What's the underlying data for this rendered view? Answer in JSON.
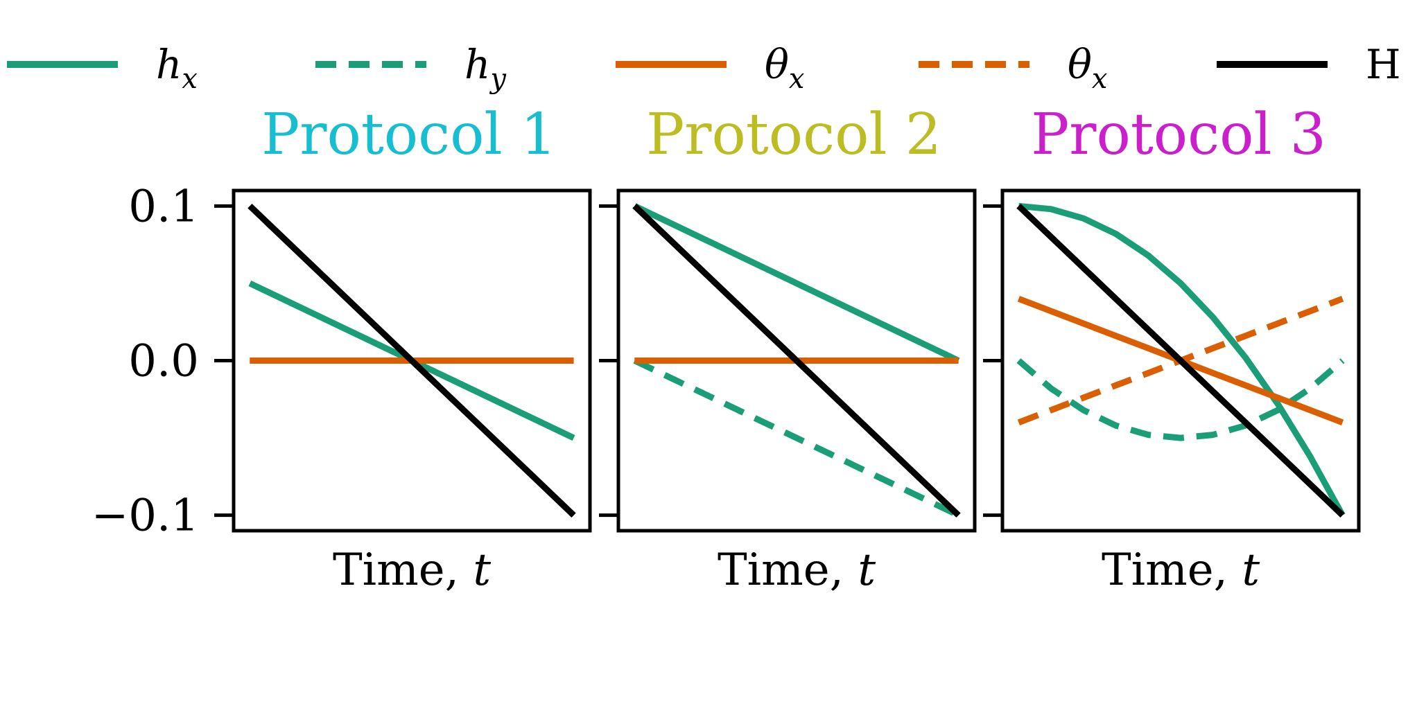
{
  "legend": {
    "placement": "top",
    "items": [
      {
        "label": "h",
        "sub": "x",
        "italic": true,
        "color": "#1b9e77",
        "dash": "solid"
      },
      {
        "label": "h",
        "sub": "y",
        "italic": true,
        "color": "#1b9e77",
        "dash": "dashed"
      },
      {
        "label": "θ",
        "sub": "x",
        "italic": true,
        "color": "#d95f02",
        "dash": "solid"
      },
      {
        "label": "θ",
        "sub": "x",
        "italic": true,
        "color": "#d95f02",
        "dash": "dashed"
      },
      {
        "label": "H",
        "sub": "",
        "italic": false,
        "color": "#000000",
        "dash": "solid"
      }
    ]
  },
  "chart_data": [
    {
      "type": "line",
      "title": "Protocol 1",
      "title_color": "#17becf",
      "xlabel": "Time, ",
      "xlabel_var": "t",
      "ylabel": "",
      "ylim": [
        -0.11,
        0.11
      ],
      "xlim": [
        -0.05,
        1.05
      ],
      "yticks": [
        "0.1",
        "0.0",
        "−0.1"
      ],
      "ytick_values": [
        0.1,
        0.0,
        -0.1
      ],
      "grid": false,
      "x": [
        0,
        0.25,
        0.5,
        0.75,
        1
      ],
      "series": [
        {
          "name": "h_x",
          "color": "#1b9e77",
          "dash": "solid",
          "values": [
            0.05,
            0.025,
            0.0,
            -0.025,
            -0.05
          ]
        },
        {
          "name": "h_y",
          "color": "#1b9e77",
          "dash": "dashed",
          "values": [
            0,
            0,
            0,
            0,
            0
          ]
        },
        {
          "name": "θ_x",
          "color": "#d95f02",
          "dash": "solid",
          "values": [
            0,
            0,
            0,
            0,
            0
          ]
        },
        {
          "name": "θ_x",
          "color": "#d95f02",
          "dash": "dashed",
          "values": [
            0,
            0,
            0,
            0,
            0
          ]
        },
        {
          "name": "H",
          "color": "#000000",
          "dash": "solid",
          "values": [
            0.1,
            0.05,
            0.0,
            -0.05,
            -0.1
          ]
        }
      ]
    },
    {
      "type": "line",
      "title": "Protocol 2",
      "title_color": "#bcbd22",
      "xlabel": "Time, ",
      "xlabel_var": "t",
      "ylabel": "",
      "ylim": [
        -0.11,
        0.11
      ],
      "xlim": [
        -0.05,
        1.05
      ],
      "yticks": [],
      "ytick_values": [
        0.1,
        0.0,
        -0.1
      ],
      "grid": false,
      "x": [
        0,
        0.25,
        0.5,
        0.75,
        1
      ],
      "series": [
        {
          "name": "h_x",
          "color": "#1b9e77",
          "dash": "solid",
          "values": [
            0.1,
            0.075,
            0.05,
            0.025,
            0.0
          ]
        },
        {
          "name": "h_y",
          "color": "#1b9e77",
          "dash": "dashed",
          "values": [
            0.0,
            -0.025,
            -0.05,
            -0.075,
            -0.1
          ]
        },
        {
          "name": "θ_x",
          "color": "#d95f02",
          "dash": "solid",
          "values": [
            0,
            0,
            0,
            0,
            0
          ]
        },
        {
          "name": "θ_x",
          "color": "#d95f02",
          "dash": "dashed",
          "values": [
            0,
            0,
            0,
            0,
            0
          ]
        },
        {
          "name": "H",
          "color": "#000000",
          "dash": "solid",
          "values": [
            0.1,
            0.05,
            0.0,
            -0.05,
            -0.1
          ]
        }
      ]
    },
    {
      "type": "line",
      "title": "Protocol 3",
      "title_color": "#cc1fcc",
      "xlabel": "Time, ",
      "xlabel_var": "t",
      "ylabel": "",
      "ylim": [
        -0.11,
        0.11
      ],
      "xlim": [
        -0.05,
        1.05
      ],
      "yticks": [],
      "ytick_values": [
        0.1,
        0.0,
        -0.1
      ],
      "grid": false,
      "x": [
        0,
        0.1,
        0.2,
        0.3,
        0.4,
        0.5,
        0.6,
        0.7,
        0.8,
        0.9,
        1.0
      ],
      "series": [
        {
          "name": "h_x",
          "color": "#1b9e77",
          "dash": "solid",
          "values": [
            0.1,
            0.098,
            0.092,
            0.082,
            0.068,
            0.05,
            0.028,
            0.002,
            -0.028,
            -0.062,
            -0.1
          ]
        },
        {
          "name": "h_y",
          "color": "#1b9e77",
          "dash": "dashed",
          "values": [
            0.0,
            -0.018,
            -0.032,
            -0.042,
            -0.048,
            -0.05,
            -0.048,
            -0.042,
            -0.032,
            -0.018,
            0.0
          ]
        },
        {
          "name": "θ_x",
          "color": "#d95f02",
          "dash": "solid",
          "values": [
            0.04,
            0.032,
            0.024,
            0.016,
            0.008,
            0.0,
            -0.008,
            -0.016,
            -0.024,
            -0.032,
            -0.04
          ]
        },
        {
          "name": "θ_x",
          "color": "#d95f02",
          "dash": "dashed",
          "values": [
            -0.04,
            -0.032,
            -0.024,
            -0.016,
            -0.008,
            0.0,
            0.008,
            0.016,
            0.024,
            0.032,
            0.04
          ]
        },
        {
          "name": "H",
          "color": "#000000",
          "dash": "solid",
          "values": [
            0.1,
            0.08,
            0.06,
            0.04,
            0.02,
            0.0,
            -0.02,
            -0.04,
            -0.06,
            -0.08,
            -0.1
          ]
        }
      ]
    }
  ]
}
